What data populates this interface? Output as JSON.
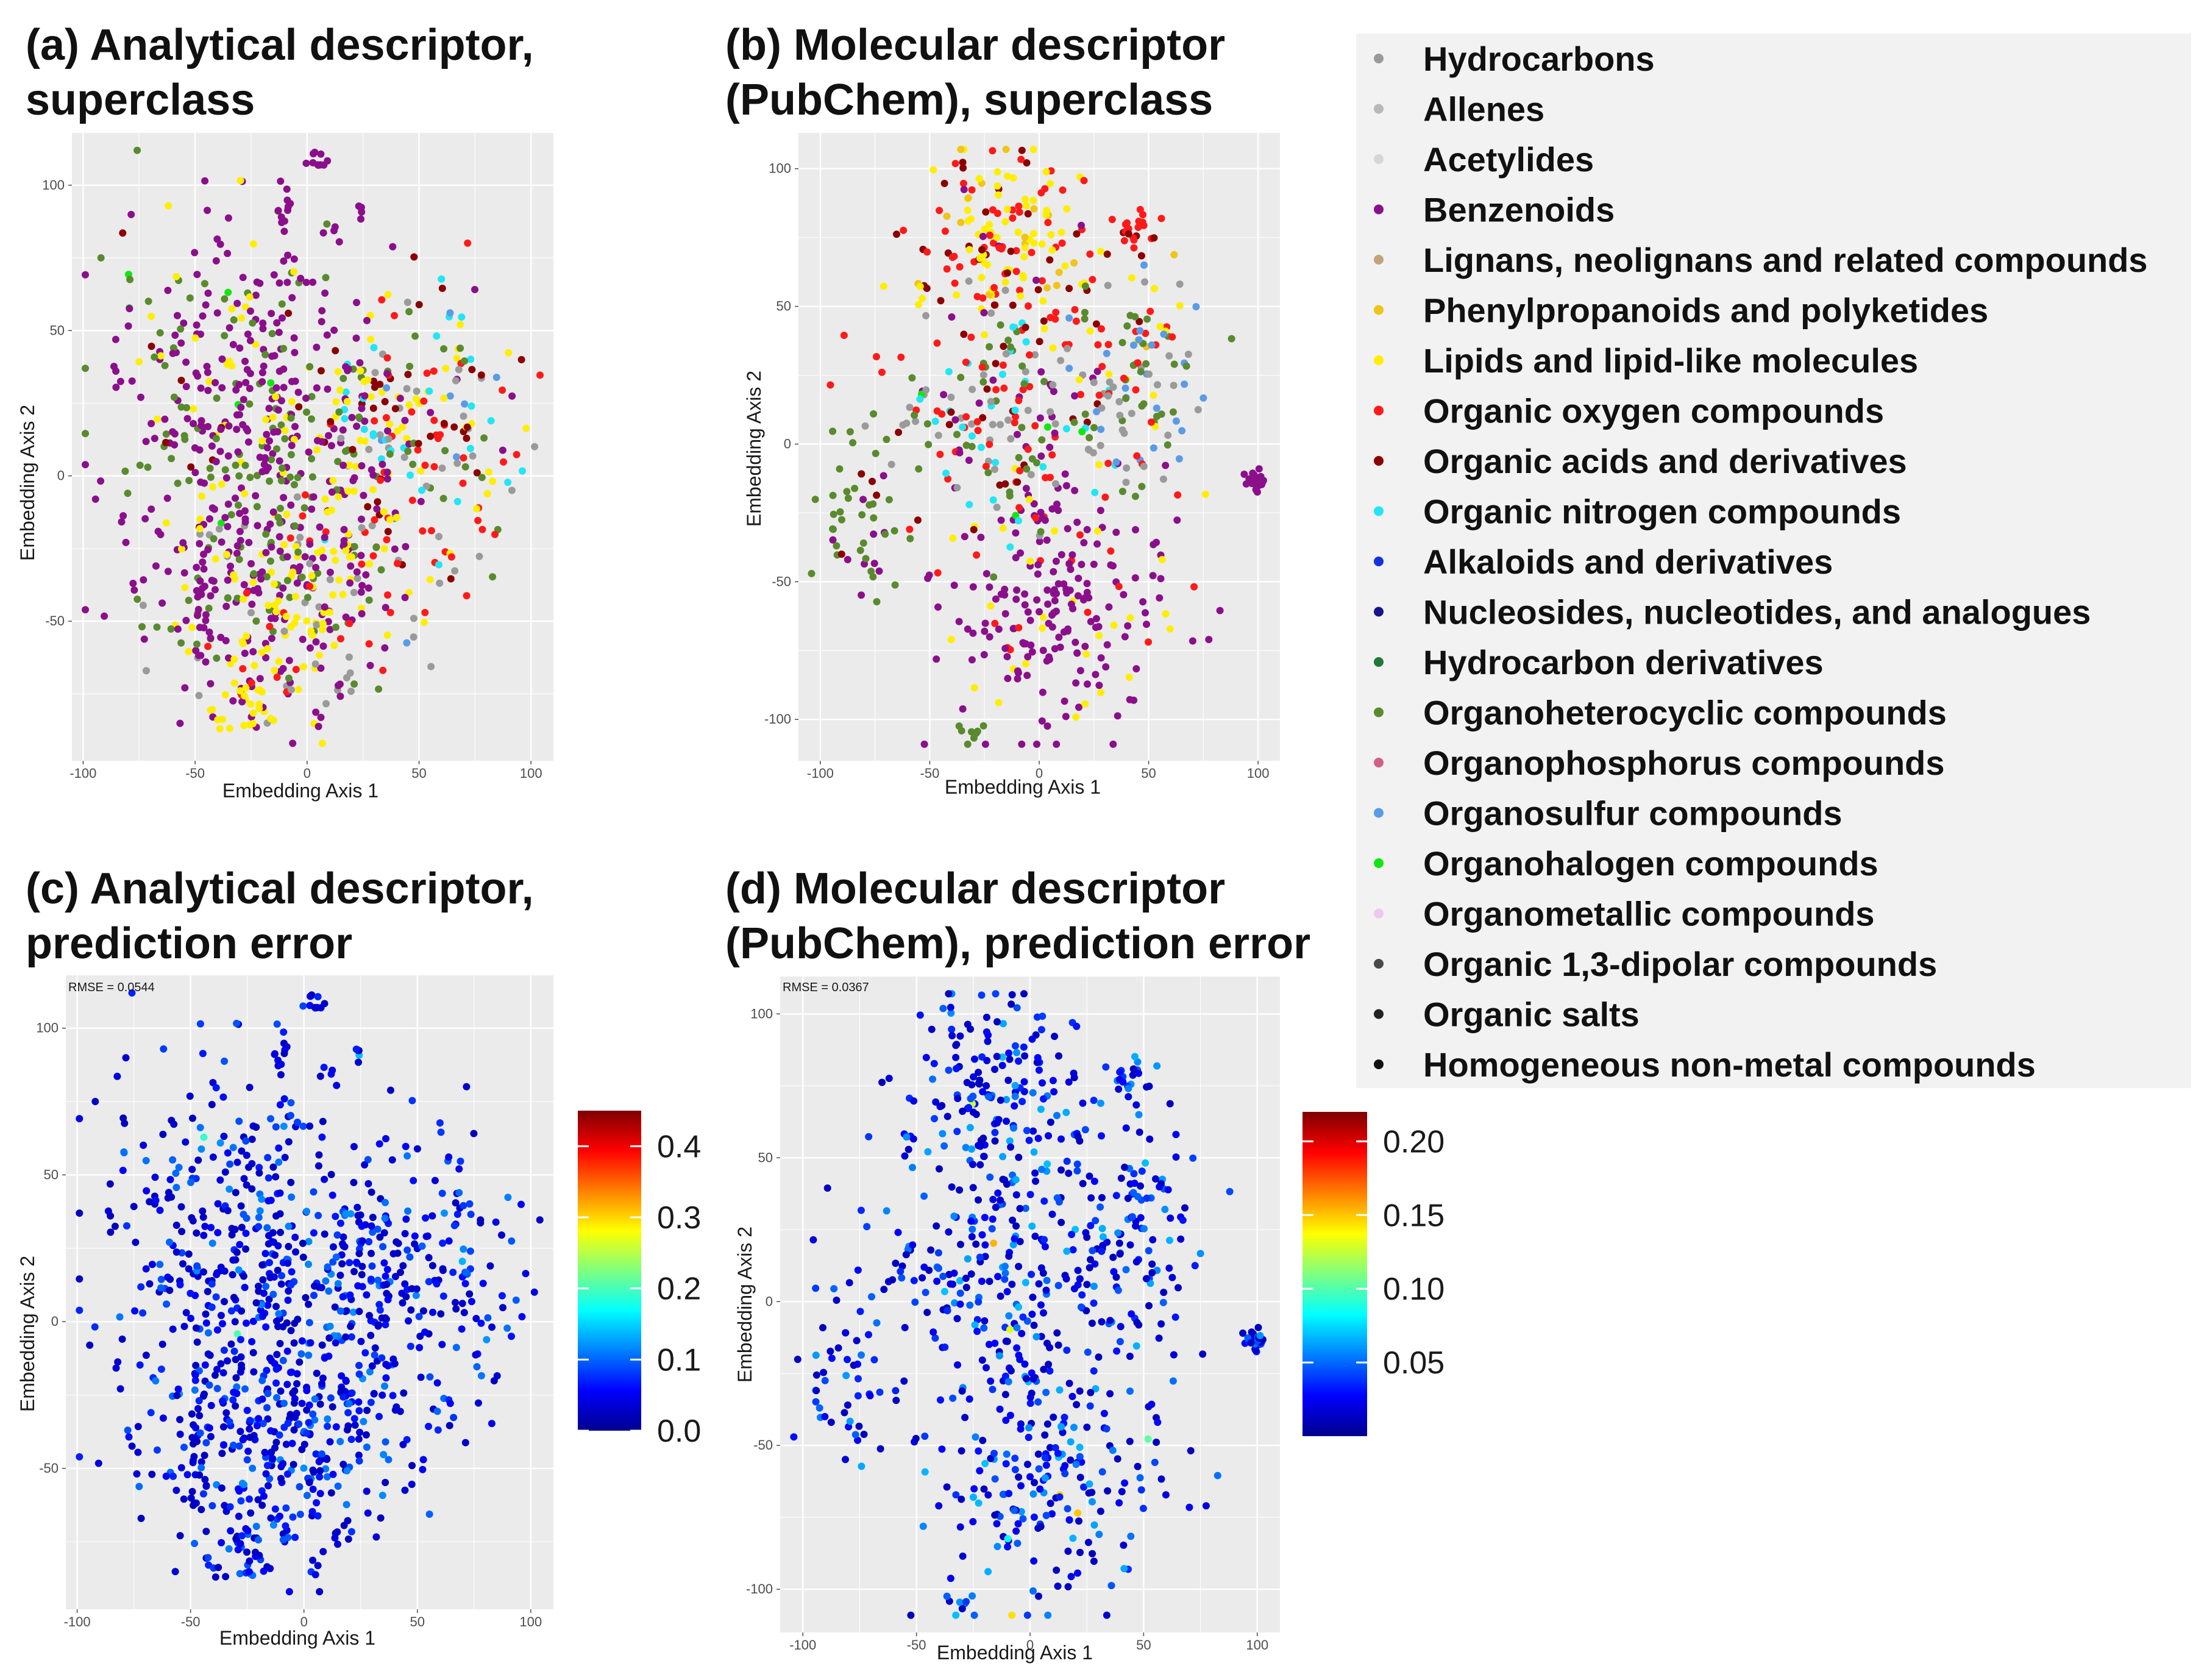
{
  "colors": {
    "panel_background": "#ebebeb",
    "gridline": "#ffffff",
    "legend_background": "#f2f2f2"
  },
  "legend": {
    "items": [
      {
        "label": "Hydrocarbons",
        "color": "#9a9a9a"
      },
      {
        "label": "Allenes",
        "color": "#b8b8b8"
      },
      {
        "label": "Acetylides",
        "color": "#d6d6d6"
      },
      {
        "label": "Benzenoids",
        "color": "#8b0f8b"
      },
      {
        "label": "Lignans, neolignans and related compounds",
        "color": "#c4a27a"
      },
      {
        "label": "Phenylpropanoids and polyketides",
        "color": "#f0c419"
      },
      {
        "label": "Lipids and lipid-like molecules",
        "color": "#ffee00"
      },
      {
        "label": "Organic oxygen compounds",
        "color": "#ff1a1a"
      },
      {
        "label": "Organic acids and derivatives",
        "color": "#8b0000"
      },
      {
        "label": "Organic nitrogen compounds",
        "color": "#22e5f5"
      },
      {
        "label": "Alkaloids and derivatives",
        "color": "#1431e0"
      },
      {
        "label": "Nucleosides, nucleotides, and analogues",
        "color": "#14148c"
      },
      {
        "label": "Hydrocarbon derivatives",
        "color": "#1f7a3a"
      },
      {
        "label": "Organoheterocyclic compounds",
        "color": "#5a8a2e"
      },
      {
        "label": "Organophosphorus compounds",
        "color": "#d0608a"
      },
      {
        "label": "Organosulfur compounds",
        "color": "#5a9be6"
      },
      {
        "label": "Organohalogen compounds",
        "color": "#12e612"
      },
      {
        "label": "Organometallic compounds",
        "color": "#edc7ee"
      },
      {
        "label": "Organic 1,3-dipolar compounds",
        "color": "#4a4a4a"
      },
      {
        "label": "Organic salts",
        "color": "#222222"
      },
      {
        "label": "Homogeneous non-metal compounds",
        "color": "#111111"
      }
    ]
  },
  "chart_data": [
    {
      "id": "a",
      "type": "scatter",
      "title": [
        "(a) Analytical descriptor,",
        "superclass"
      ],
      "xlabel": "Embedding Axis 1",
      "ylabel": "Embedding Axis 2",
      "xlim": [
        -105,
        110
      ],
      "ylim": [
        -98,
        118
      ],
      "xticks": [
        -100,
        -50,
        0,
        50,
        100
      ],
      "yticks": [
        -50,
        0,
        50,
        100
      ],
      "color_by": "superclass",
      "clusters": [
        {
          "cx": -40,
          "cy": 30,
          "sx": 28,
          "sy": 28,
          "n": 260,
          "weights": {
            "Benzenoids": 6,
            "Organoheterocyclic compounds": 2,
            "Lipids and lipid-like molecules": 1,
            "Organohalogen compounds": 0.6,
            "Organic acids and derivatives": 0.4
          }
        },
        {
          "cx": -35,
          "cy": -35,
          "sx": 22,
          "sy": 25,
          "n": 190,
          "weights": {
            "Benzenoids": 6,
            "Organoheterocyclic compounds": 1.5,
            "Lipids and lipid-like molecules": 1,
            "Hydrocarbons": 0.5
          }
        },
        {
          "cx": 45,
          "cy": 15,
          "sx": 25,
          "sy": 25,
          "n": 250,
          "weights": {
            "Organic oxygen compounds": 2.5,
            "Lipids and lipid-like molecules": 2,
            "Organic acids and derivatives": 1.5,
            "Hydrocarbons": 1.5,
            "Organic nitrogen compounds": 1,
            "Organoheterocyclic compounds": 1,
            "Organosulfur compounds": 0.5,
            "Benzenoids": 0.8
          }
        },
        {
          "cx": 5,
          "cy": -45,
          "sx": 22,
          "sy": 20,
          "n": 160,
          "weights": {
            "Lipids and lipid-like molecules": 3,
            "Benzenoids": 2,
            "Organic oxygen compounds": 1.5,
            "Organoheterocyclic compounds": 1,
            "Hydrocarbons": 0.8
          }
        },
        {
          "cx": 0,
          "cy": 10,
          "sx": 20,
          "sy": 28,
          "n": 140,
          "weights": {
            "Benzenoids": 4,
            "Organoheterocyclic compounds": 1.5,
            "Lipids and lipid-like molecules": 1
          }
        },
        {
          "cx": -30,
          "cy": -80,
          "sx": 8,
          "sy": 5,
          "n": 30,
          "weights": {
            "Lipids and lipid-like molecules": 5,
            "Benzenoids": 1
          }
        },
        {
          "cx": 5,
          "cy": 110,
          "sx": 2,
          "sy": 1.5,
          "n": 10,
          "weights": {
            "Benzenoids": 1
          }
        },
        {
          "cx": -10,
          "cy": 93,
          "sx": 2,
          "sy": 3,
          "n": 10,
          "weights": {
            "Benzenoids": 1
          }
        },
        {
          "cx": 25,
          "cy": 90,
          "sx": 3,
          "sy": 1.5,
          "n": 6,
          "weights": {
            "Benzenoids": 1
          }
        },
        {
          "cx": 15,
          "cy": 85,
          "sx": 3,
          "sy": 2,
          "n": 4,
          "weights": {
            "Benzenoids": 1
          }
        }
      ]
    },
    {
      "id": "b",
      "type": "scatter",
      "title": [
        "(b) Molecular descriptor",
        "(PubChem), superclass"
      ],
      "xlabel": "Embedding Axis 1",
      "ylabel": "Embedding Axis 2",
      "xlim": [
        -110,
        110
      ],
      "ylim": [
        -115,
        113
      ],
      "xticks": [
        -100,
        -50,
        0,
        50,
        100
      ],
      "yticks": [
        -100,
        -50,
        0,
        50,
        100
      ],
      "color_by": "superclass",
      "clusters": [
        {
          "cx": -10,
          "cy": 70,
          "sx": 25,
          "sy": 18,
          "n": 190,
          "weights": {
            "Lipids and lipid-like molecules": 4,
            "Organic oxygen compounds": 3,
            "Organic acids and derivatives": 2,
            "Phenylpropanoids and polyketides": 1,
            "Benzenoids": 0.5
          }
        },
        {
          "cx": 10,
          "cy": -55,
          "sx": 25,
          "sy": 25,
          "n": 230,
          "weights": {
            "Benzenoids": 7,
            "Lipids and lipid-like molecules": 1,
            "Organic oxygen compounds": 0.5
          }
        },
        {
          "cx": -20,
          "cy": 10,
          "sx": 25,
          "sy": 20,
          "n": 200,
          "weights": {
            "Hydrocarbons": 2.5,
            "Organoheterocyclic compounds": 2,
            "Organic nitrogen compounds": 1.5,
            "Organic oxygen compounds": 1.5,
            "Organic acids and derivatives": 1,
            "Benzenoids": 1,
            "Organohalogen compounds": 0.5
          }
        },
        {
          "cx": 45,
          "cy": 25,
          "sx": 15,
          "sy": 20,
          "n": 110,
          "weights": {
            "Organoheterocyclic compounds": 2,
            "Hydrocarbons": 2,
            "Organosulfur compounds": 1.5,
            "Organic oxygen compounds": 1,
            "Lipids and lipid-like molecules": 1
          }
        },
        {
          "cx": -80,
          "cy": -25,
          "sx": 10,
          "sy": 15,
          "n": 50,
          "weights": {
            "Organoheterocyclic compounds": 4,
            "Benzenoids": 1,
            "Organic acids and derivatives": 0.5
          }
        },
        {
          "cx": 100,
          "cy": -14,
          "sx": 2.5,
          "sy": 2,
          "n": 25,
          "weights": {
            "Benzenoids": 1
          }
        },
        {
          "cx": -30,
          "cy": -105,
          "sx": 3,
          "sy": 2,
          "n": 8,
          "weights": {
            "Organoheterocyclic compounds": 1
          }
        },
        {
          "cx": 45,
          "cy": 80,
          "sx": 5,
          "sy": 5,
          "n": 20,
          "weights": {
            "Organic oxygen compounds": 3,
            "Organic acids and derivatives": 1
          }
        }
      ]
    },
    {
      "id": "c",
      "type": "scatter",
      "title": [
        "(c) Analytical descriptor,",
        "prediction error"
      ],
      "annotation": "RMSE = 0.0544",
      "xlabel": "Embedding Axis 1",
      "ylabel": "Embedding Axis 2",
      "xlim": [
        -105,
        110
      ],
      "ylim": [
        -98,
        118
      ],
      "xticks": [
        -100,
        -50,
        0,
        50,
        100
      ],
      "yticks": [
        -50,
        0,
        50,
        100
      ],
      "color_by": "error",
      "colorbar": {
        "min": 0.0,
        "max": 0.45,
        "ticks": [
          0.0,
          0.1,
          0.2,
          0.3,
          0.4
        ],
        "tick_labels": [
          "0.0",
          "0.1",
          "0.2",
          "0.3",
          "0.4"
        ]
      },
      "error_distribution": {
        "typical_max": 0.1,
        "rare_high_fraction": 0.004,
        "rare_high_max": 0.33
      },
      "clusters_from": "a"
    },
    {
      "id": "d",
      "type": "scatter",
      "title": [
        "(d) Molecular descriptor",
        "(PubChem), prediction error"
      ],
      "annotation": "RMSE = 0.0367",
      "xlabel": "Embedding Axis 1",
      "ylabel": "Embedding Axis 2",
      "xlim": [
        -110,
        110
      ],
      "ylim": [
        -115,
        113
      ],
      "xticks": [
        -100,
        -50,
        0,
        50,
        100
      ],
      "yticks": [
        -100,
        -50,
        0,
        50,
        100
      ],
      "color_by": "error",
      "colorbar": {
        "min": 0.0,
        "max": 0.22,
        "ticks": [
          0.05,
          0.1,
          0.15,
          0.2
        ],
        "tick_labels": [
          "0.05",
          "0.10",
          "0.15",
          "0.20"
        ]
      },
      "error_distribution": {
        "typical_max": 0.06,
        "rare_high_fraction": 0.01,
        "rare_high_max": 0.15
      },
      "clusters_from": "b"
    }
  ]
}
